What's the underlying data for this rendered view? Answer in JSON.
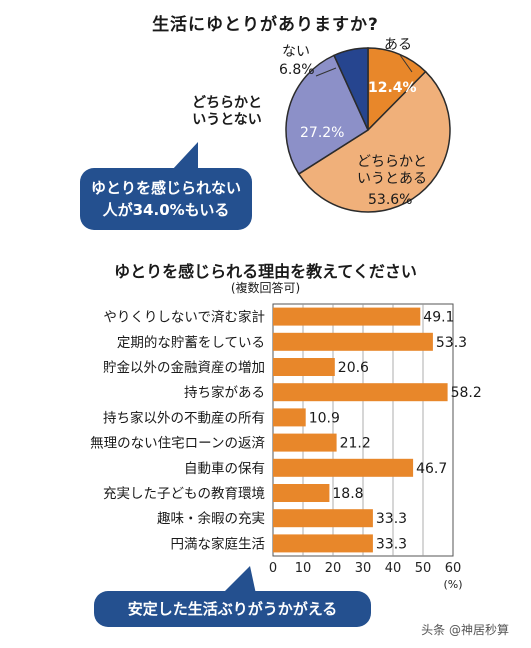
{
  "chart_data": [
    {
      "type": "pie",
      "title": "生活にゆとりがありますか?",
      "slices": [
        {
          "label": "ある",
          "value": 12.4,
          "value_label": "12.4%",
          "color": "#e8872a"
        },
        {
          "label": "どちらかと\nいうとある",
          "value": 53.6,
          "value_label": "53.6%",
          "color": "#f0b07a"
        },
        {
          "label": "どちらかと\nいうとない",
          "value": 27.2,
          "value_label": "27.2%",
          "color": "#8c90c8"
        },
        {
          "label": "ない",
          "value": 6.8,
          "value_label": "6.8%",
          "color": "#26458f"
        }
      ],
      "callout": "ゆとりを感じられない\n人が34.0%もいる"
    },
    {
      "type": "bar",
      "orientation": "horizontal",
      "title": "ゆとりを感じられる理由を教えてください",
      "subtitle": "(複数回答可)",
      "categories": [
        "やりくりしないで済む家計",
        "定期的な貯蓄をしている",
        "貯金以外の金融資産の増加",
        "持ち家がある",
        "持ち家以外の不動産の所有",
        "無理のない住宅ローンの返済",
        "自動車の保有",
        "充実した子どもの教育環境",
        "趣味・余暇の充実",
        "円満な家庭生活"
      ],
      "values": [
        49.1,
        53.3,
        20.6,
        58.2,
        10.9,
        21.2,
        46.7,
        18.8,
        33.3,
        33.3
      ],
      "value_labels": [
        "49.1",
        "53.3",
        "20.6",
        "58.2",
        "10.9",
        "21.2",
        "46.7",
        "18.8",
        "33.3",
        "33.3"
      ],
      "xlim": [
        0,
        60
      ],
      "xticks": [
        "0",
        "10",
        "20",
        "30",
        "40",
        "50",
        "60"
      ],
      "xunit": "(%)",
      "bar_color": "#e8872a",
      "grid": true,
      "callout": "安定した生活ぶりがうかがえる"
    }
  ],
  "watermark": "头条 @神居秒算"
}
